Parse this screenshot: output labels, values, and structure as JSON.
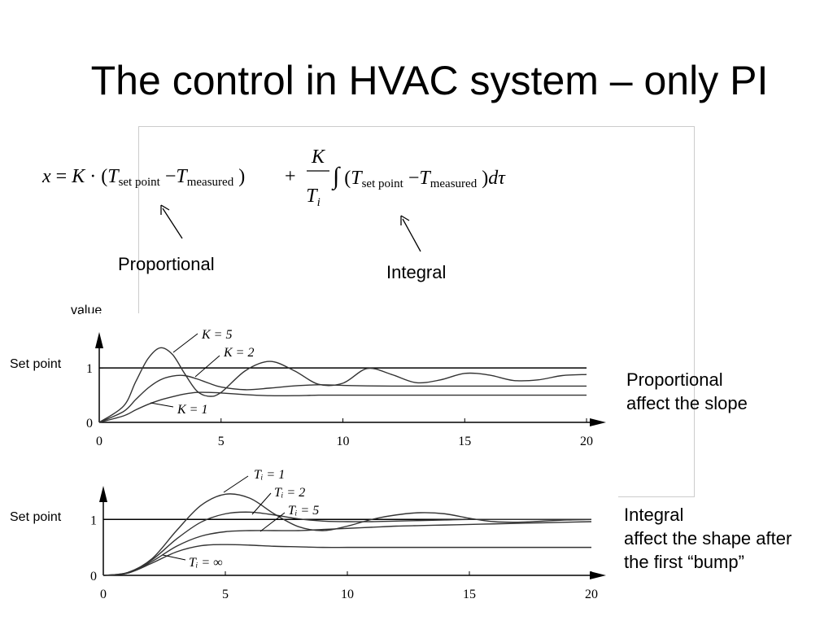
{
  "title": "The control in HVAC system – only PI",
  "formula": {
    "left": [
      "x",
      " = ",
      "K",
      " · (",
      "T",
      "set point",
      " −",
      "T",
      "measured",
      " )"
    ],
    "plus": "+",
    "numerator": "K",
    "denominator": "T",
    "denominator_sub": "i",
    "right": [
      "∫",
      " (",
      "T",
      "set point",
      " −",
      "T",
      "measured",
      " )",
      "d",
      "τ"
    ]
  },
  "annotations": {
    "proportional": "Proportional",
    "integral": "Integral",
    "value": "value"
  },
  "notes": [
    [
      "Proportional",
      "affect the slope"
    ],
    [
      "Integral",
      "affect the shape after",
      "the first “bump”"
    ]
  ],
  "chart_data": [
    {
      "type": "line",
      "x": [
        0,
        1,
        1.5,
        2,
        2.5,
        3,
        3.5,
        4,
        4.5,
        5,
        6,
        7,
        8,
        9,
        10,
        11,
        12,
        13,
        14,
        15,
        16,
        17,
        18,
        19,
        20
      ],
      "series": [
        {
          "name": "K = 5",
          "color": "#333333",
          "values": [
            0,
            0.3,
            0.75,
            1.17,
            1.37,
            1.25,
            0.9,
            0.58,
            0.48,
            0.55,
            0.95,
            1.12,
            0.95,
            0.7,
            0.72,
            0.99,
            0.88,
            0.73,
            0.78,
            0.9,
            0.87,
            0.77,
            0.78,
            0.86,
            0.88
          ]
        },
        {
          "name": "K = 2",
          "color": "#333333",
          "values": [
            0,
            0.2,
            0.42,
            0.63,
            0.78,
            0.85,
            0.86,
            0.8,
            0.72,
            0.65,
            0.6,
            0.63,
            0.67,
            0.69,
            0.68,
            0.67,
            0.667,
            0.667,
            0.667,
            0.667,
            0.667,
            0.667,
            0.667,
            0.667,
            0.667
          ]
        },
        {
          "name": "K = 1",
          "color": "#333333",
          "values": [
            0,
            0.12,
            0.23,
            0.33,
            0.41,
            0.47,
            0.52,
            0.55,
            0.55,
            0.54,
            0.51,
            0.49,
            0.49,
            0.5,
            0.5,
            0.5,
            0.5,
            0.5,
            0.5,
            0.5,
            0.5,
            0.5,
            0.5,
            0.5,
            0.5
          ]
        }
      ],
      "setpoint": 1,
      "setpoint_label": "Set point",
      "xlim": [
        0,
        20.8
      ],
      "ylim": [
        0,
        1.66
      ],
      "xticks": [
        0,
        5,
        10,
        15,
        20
      ],
      "yticks": [
        0,
        1
      ]
    },
    {
      "type": "line",
      "x": [
        0,
        1,
        2,
        3,
        4,
        5,
        6,
        7,
        8,
        9,
        10,
        11,
        12,
        13,
        14,
        15,
        16,
        17,
        18,
        19,
        20
      ],
      "series": [
        {
          "name": "Tᵢ = 1",
          "color": "#333333",
          "values": [
            0,
            0.05,
            0.3,
            0.8,
            1.25,
            1.45,
            1.38,
            1.1,
            0.87,
            0.8,
            0.88,
            1.0,
            1.08,
            1.12,
            1.1,
            1.02,
            0.96,
            0.95,
            0.97,
            0.99,
            1.0
          ]
        },
        {
          "name": "Tᵢ = 2",
          "color": "#333333",
          "values": [
            0,
            0.05,
            0.28,
            0.65,
            0.95,
            1.1,
            1.13,
            1.08,
            1.01,
            0.97,
            0.96,
            0.96,
            0.97,
            0.98,
            0.99,
            1.0,
            1.0,
            1.0,
            1.0,
            1.0,
            1.0
          ]
        },
        {
          "name": "Tᵢ = 5",
          "color": "#333333",
          "values": [
            0,
            0.04,
            0.25,
            0.52,
            0.7,
            0.78,
            0.8,
            0.8,
            0.8,
            0.82,
            0.84,
            0.86,
            0.88,
            0.89,
            0.9,
            0.91,
            0.92,
            0.93,
            0.94,
            0.95,
            0.96
          ]
        },
        {
          "name": "Tᵢ = ∞",
          "color": "#333333",
          "values": [
            0,
            0.04,
            0.22,
            0.42,
            0.53,
            0.55,
            0.54,
            0.52,
            0.51,
            0.5,
            0.5,
            0.5,
            0.5,
            0.5,
            0.5,
            0.5,
            0.5,
            0.5,
            0.5,
            0.5,
            0.5
          ]
        }
      ],
      "setpoint": 1,
      "setpoint_label": "Set point",
      "xlim": [
        0,
        20.6
      ],
      "ylim": [
        0,
        1.6
      ],
      "xticks": [
        0,
        5,
        10,
        15,
        20
      ],
      "yticks": [
        0,
        1
      ]
    }
  ]
}
